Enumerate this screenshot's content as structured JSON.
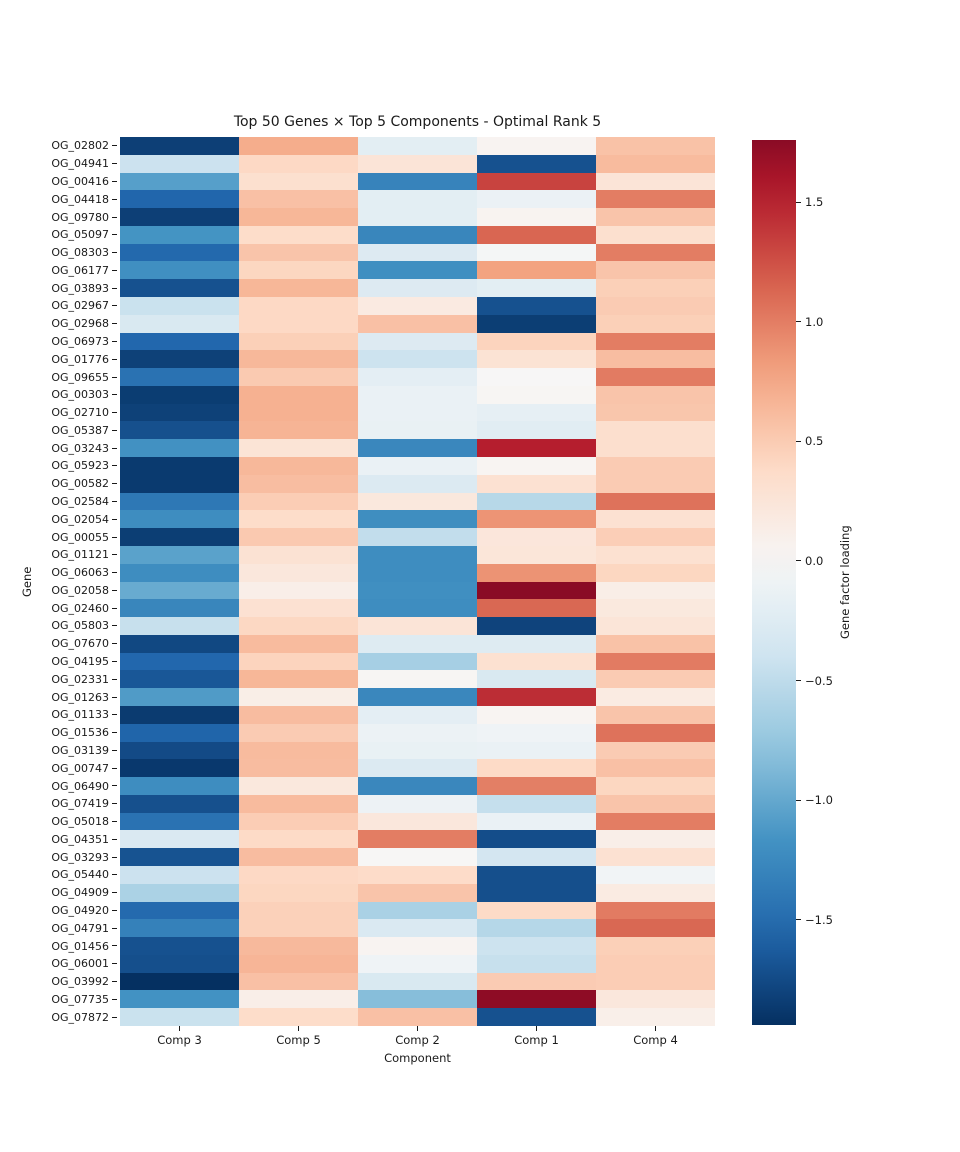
{
  "chart_data": {
    "type": "heatmap",
    "title": "Top 50 Genes × Top 5 Components - Optimal Rank 5",
    "xlabel": "Component",
    "ylabel": "Gene",
    "colormap": "RdBu_r",
    "center": 0,
    "vmin": -1.94,
    "vmax": 1.76,
    "columns": [
      "Comp 3",
      "Comp 5",
      "Comp 2",
      "Comp 1",
      "Comp 4"
    ],
    "genes": [
      "OG_02802",
      "OG_04941",
      "OG_00416",
      "OG_04418",
      "OG_09780",
      "OG_05097",
      "OG_08303",
      "OG_06177",
      "OG_03893",
      "OG_02967",
      "OG_02968",
      "OG_06973",
      "OG_01776",
      "OG_09655",
      "OG_00303",
      "OG_02710",
      "OG_05387",
      "OG_03243",
      "OG_05923",
      "OG_00582",
      "OG_02584",
      "OG_02054",
      "OG_00055",
      "OG_01121",
      "OG_06063",
      "OG_02058",
      "OG_02460",
      "OG_05803",
      "OG_07670",
      "OG_04195",
      "OG_02331",
      "OG_01263",
      "OG_01133",
      "OG_01536",
      "OG_03139",
      "OG_00747",
      "OG_06490",
      "OG_07419",
      "OG_05018",
      "OG_04351",
      "OG_03293",
      "OG_05440",
      "OG_04909",
      "OG_04920",
      "OG_04791",
      "OG_01456",
      "OG_06001",
      "OG_03992",
      "OG_07735",
      "OG_07872"
    ],
    "values": [
      [
        -1.83,
        0.72,
        -0.2,
        0.05,
        0.57
      ],
      [
        -0.42,
        0.4,
        0.26,
        -1.7,
        0.62
      ],
      [
        -1.07,
        0.32,
        -1.3,
        1.32,
        0.26
      ],
      [
        -1.55,
        0.58,
        -0.2,
        -0.12,
        1.0
      ],
      [
        -1.83,
        0.65,
        -0.2,
        0.06,
        0.55
      ],
      [
        -1.16,
        0.36,
        -1.28,
        1.13,
        0.32
      ],
      [
        -1.53,
        0.55,
        -0.27,
        -0.03,
        1.0
      ],
      [
        -1.2,
        0.42,
        -1.2,
        0.79,
        0.55
      ],
      [
        -1.7,
        0.65,
        -0.27,
        -0.2,
        0.47
      ],
      [
        -0.43,
        0.4,
        0.18,
        -1.7,
        0.5
      ],
      [
        -0.31,
        0.4,
        0.58,
        -1.84,
        0.47
      ],
      [
        -1.54,
        0.47,
        -0.27,
        0.44,
        1.0
      ],
      [
        -1.82,
        0.64,
        -0.41,
        0.28,
        0.6
      ],
      [
        -1.45,
        0.51,
        -0.19,
        0.01,
        1.01
      ],
      [
        -1.85,
        0.69,
        -0.13,
        0.03,
        0.55
      ],
      [
        -1.82,
        0.69,
        -0.13,
        -0.17,
        0.54
      ],
      [
        -1.71,
        0.67,
        -0.14,
        -0.22,
        0.33
      ],
      [
        -1.18,
        0.27,
        -1.27,
        1.52,
        0.33
      ],
      [
        -1.87,
        0.64,
        -0.13,
        0.04,
        0.5
      ],
      [
        -1.87,
        0.6,
        -0.28,
        0.3,
        0.5
      ],
      [
        -1.4,
        0.49,
        0.21,
        -0.55,
        1.06
      ],
      [
        -1.22,
        0.36,
        -1.21,
        0.87,
        0.3
      ],
      [
        -1.84,
        0.52,
        -0.48,
        0.23,
        0.48
      ],
      [
        -1.05,
        0.29,
        -1.22,
        0.24,
        0.31
      ],
      [
        -1.22,
        0.22,
        -1.22,
        0.88,
        0.42
      ],
      [
        -0.98,
        0.12,
        -1.2,
        1.76,
        0.13
      ],
      [
        -1.28,
        0.3,
        -1.22,
        1.12,
        0.2
      ],
      [
        -0.45,
        0.41,
        0.26,
        -1.8,
        0.25
      ],
      [
        -1.77,
        0.62,
        -0.26,
        -0.26,
        0.57
      ],
      [
        -1.54,
        0.44,
        -0.65,
        0.31,
        1.01
      ],
      [
        -1.66,
        0.65,
        0.03,
        -0.31,
        0.5
      ],
      [
        -1.1,
        0.13,
        -1.27,
        1.44,
        0.17
      ],
      [
        -1.86,
        0.61,
        -0.19,
        0.04,
        0.55
      ],
      [
        -1.56,
        0.5,
        -0.11,
        -0.08,
        1.06
      ],
      [
        -1.75,
        0.62,
        -0.14,
        -0.13,
        0.5
      ],
      [
        -1.88,
        0.61,
        -0.28,
        0.39,
        0.58
      ],
      [
        -1.22,
        0.21,
        -1.27,
        0.99,
        0.42
      ],
      [
        -1.71,
        0.62,
        -0.1,
        -0.46,
        0.55
      ],
      [
        -1.45,
        0.49,
        0.22,
        -0.13,
        1.0
      ],
      [
        -0.3,
        0.39,
        1.0,
        -1.73,
        0.12
      ],
      [
        -1.69,
        0.61,
        0.02,
        -0.36,
        0.3
      ],
      [
        -0.42,
        0.4,
        0.37,
        -1.72,
        -0.06
      ],
      [
        -0.62,
        0.42,
        0.55,
        -1.72,
        0.17
      ],
      [
        -1.52,
        0.46,
        -0.63,
        0.39,
        1.01
      ],
      [
        -1.32,
        0.46,
        -0.3,
        -0.56,
        1.12
      ],
      [
        -1.7,
        0.63,
        0.05,
        -0.41,
        0.47
      ],
      [
        -1.72,
        0.66,
        -0.08,
        -0.45,
        0.49
      ],
      [
        -1.94,
        0.58,
        -0.31,
        0.5,
        0.49
      ],
      [
        -1.17,
        0.12,
        -0.83,
        1.74,
        0.22
      ],
      [
        -0.43,
        0.36,
        0.58,
        -1.7,
        0.11
      ]
    ],
    "colorbar": {
      "label": "Gene factor loading",
      "tick_labels": [
        "1.5",
        "1.0",
        "0.5",
        "0.0",
        "−0.5",
        "−1.0",
        "−1.5"
      ],
      "tick_values": [
        1.5,
        1.0,
        0.5,
        0.0,
        -0.5,
        -1.0,
        -1.5
      ]
    }
  }
}
